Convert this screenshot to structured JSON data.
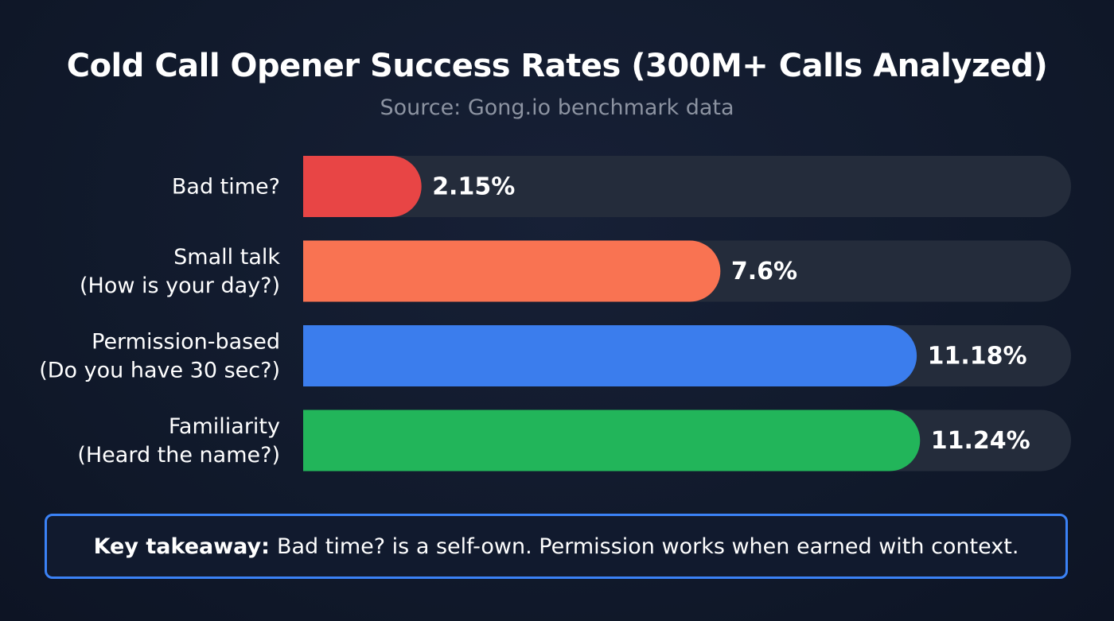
{
  "chart_data": {
    "type": "bar",
    "orientation": "horizontal",
    "title": "Cold Call Opener Success Rates (300M+ Calls Analyzed)",
    "subtitle": "Source: Gong.io benchmark data",
    "categories": [
      [
        "Bad time?"
      ],
      [
        "Small talk",
        "(How is your day?)"
      ],
      [
        "Permission-based",
        "(Do you have 30 sec?)"
      ],
      [
        "Familiarity",
        "(Heard the name?)"
      ]
    ],
    "values": [
      2.15,
      7.6,
      11.18,
      11.24
    ],
    "value_labels": [
      "2.15%",
      "7.6%",
      "11.18%",
      "11.24%"
    ],
    "colors": [
      "#e84545",
      "#f97352",
      "#3b7ded",
      "#22b55a"
    ],
    "track_color": "#242c3b",
    "xlim": [
      0,
      14
    ],
    "unit": "%",
    "grid": false,
    "legend": "none"
  },
  "takeaway": {
    "label": "Key takeaway:",
    "text": "Bad time? is a self-own. Permission works when earned with context."
  }
}
